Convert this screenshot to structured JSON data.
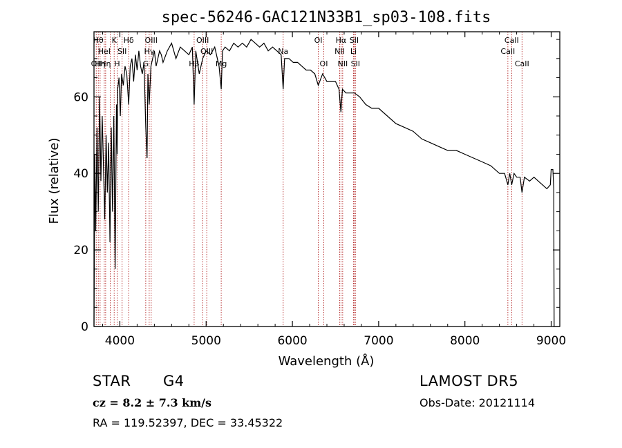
{
  "chart_data": {
    "type": "line",
    "title": "spec-56246-GAC121N33B1_sp03-108.fits",
    "xlabel": "Wavelength (Å)",
    "ylabel": "Flux (relative)",
    "xlim": [
      3700,
      9100
    ],
    "ylim": [
      0,
      77
    ],
    "x_ticks": [
      4000,
      5000,
      6000,
      7000,
      8000,
      9000
    ],
    "y_ticks": [
      0,
      20,
      40,
      60
    ],
    "grid": false,
    "line_color": "#000000",
    "marker_color": "#b22222",
    "series": [
      {
        "x": [
          3700,
          3710,
          3720,
          3735,
          3750,
          3765,
          3780,
          3795,
          3810,
          3825,
          3840,
          3855,
          3870,
          3885,
          3900,
          3915,
          3930,
          3945,
          3960,
          3968,
          3975,
          3990,
          4005,
          4020,
          4040,
          4060,
          4080,
          4102,
          4120,
          4140,
          4160,
          4180,
          4200,
          4220,
          4240,
          4260,
          4280,
          4300,
          4315,
          4325,
          4340,
          4360,
          4380,
          4400,
          4420,
          4440,
          4460,
          4480,
          4500,
          4550,
          4600,
          4650,
          4700,
          4750,
          4800,
          4840,
          4861,
          4880,
          4920,
          4960,
          5000,
          5050,
          5100,
          5150,
          5175,
          5190,
          5220,
          5270,
          5320,
          5370,
          5420,
          5470,
          5520,
          5570,
          5620,
          5670,
          5720,
          5770,
          5820,
          5870,
          5893,
          5910,
          5960,
          6010,
          6060,
          6110,
          6160,
          6210,
          6260,
          6300,
          6350,
          6400,
          6450,
          6500,
          6540,
          6563,
          6580,
          6620,
          6680,
          6720,
          6780,
          6850,
          6920,
          7000,
          7100,
          7200,
          7300,
          7400,
          7500,
          7600,
          7700,
          7800,
          7900,
          8000,
          8100,
          8200,
          8300,
          8400,
          8460,
          8498,
          8520,
          8542,
          8570,
          8600,
          8640,
          8662,
          8690,
          8750,
          8800,
          8850,
          8900,
          8950,
          8990,
          9000,
          9020,
          9030,
          9032,
          9034
        ],
        "y": [
          0,
          45,
          25,
          52,
          30,
          60,
          38,
          55,
          42,
          28,
          50,
          35,
          48,
          22,
          52,
          30,
          55,
          15,
          58,
          45,
          62,
          65,
          55,
          66,
          63,
          68,
          66,
          58,
          68,
          70,
          64,
          71,
          67,
          72,
          68,
          66,
          69,
          52,
          44,
          66,
          58,
          68,
          70,
          72,
          68,
          70,
          72,
          71,
          69,
          72,
          74,
          70,
          73,
          72,
          71,
          73,
          58,
          72,
          66,
          70,
          72,
          71,
          73,
          68,
          62,
          72,
          73,
          72,
          74,
          73,
          74,
          73,
          75,
          74,
          73,
          74,
          72,
          73,
          72,
          71,
          62,
          70,
          70,
          69,
          69,
          68,
          67,
          67,
          66,
          63,
          66,
          64,
          64,
          64,
          62,
          56,
          62,
          61,
          61,
          61,
          60,
          58,
          57,
          57,
          55,
          53,
          52,
          51,
          49,
          48,
          47,
          46,
          46,
          45,
          44,
          43,
          42,
          40,
          40,
          37,
          40,
          37,
          40,
          39,
          39,
          35,
          39,
          38,
          39,
          38,
          37,
          36,
          37,
          41,
          41,
          36,
          18,
          0
        ]
      }
    ],
    "lines": [
      {
        "x": 3726,
        "label": "OII",
        "row": 3
      },
      {
        "x": 3750,
        "label": "Hθ",
        "row": 1
      },
      {
        "x": 3771,
        "label": "Hη",
        "row": 3
      },
      {
        "x": 3819,
        "label": "HeI",
        "row": 2
      },
      {
        "x": 3835,
        "label": "Hη",
        "row": 3
      },
      {
        "x": 3889,
        "label": "",
        "row": 0
      },
      {
        "x": 3934,
        "label": "K",
        "row": 1
      },
      {
        "x": 3969,
        "label": "H",
        "row": 3
      },
      {
        "x": 4026,
        "label": "SII",
        "row": 2
      },
      {
        "x": 4102,
        "label": "Hδ",
        "row": 1
      },
      {
        "x": 4300,
        "label": "G",
        "row": 3
      },
      {
        "x": 4340,
        "label": "Hγ",
        "row": 2
      },
      {
        "x": 4363,
        "label": "OIII",
        "row": 1
      },
      {
        "x": 4861,
        "label": "Hβ",
        "row": 3
      },
      {
        "x": 4959,
        "label": "OIII",
        "row": 1
      },
      {
        "x": 5007,
        "label": "OIII",
        "row": 2
      },
      {
        "x": 5175,
        "label": "Mg",
        "row": 3
      },
      {
        "x": 5893,
        "label": "Na",
        "row": 2
      },
      {
        "x": 6300,
        "label": "OI",
        "row": 1
      },
      {
        "x": 6364,
        "label": "OI",
        "row": 3
      },
      {
        "x": 6548,
        "label": "NII",
        "row": 2
      },
      {
        "x": 6563,
        "label": "Hα",
        "row": 1
      },
      {
        "x": 6583,
        "label": "NII",
        "row": 3
      },
      {
        "x": 6708,
        "label": "Li",
        "row": 2
      },
      {
        "x": 6716,
        "label": "SII",
        "row": 1
      },
      {
        "x": 6731,
        "label": "SII",
        "row": 3
      },
      {
        "x": 8498,
        "label": "CaII",
        "row": 2
      },
      {
        "x": 8542,
        "label": "CaII",
        "row": 1
      },
      {
        "x": 8662,
        "label": "CaII",
        "row": 3
      }
    ]
  },
  "info": {
    "class_label": "STAR",
    "subclass": "G4",
    "survey": "LAMOST DR5",
    "cz_text": "cz = 8.2 ± 7.3 km/s",
    "obs_date": "Obs-Date: 20121114",
    "coords": "RA = 119.52397, DEC =  33.45322"
  }
}
